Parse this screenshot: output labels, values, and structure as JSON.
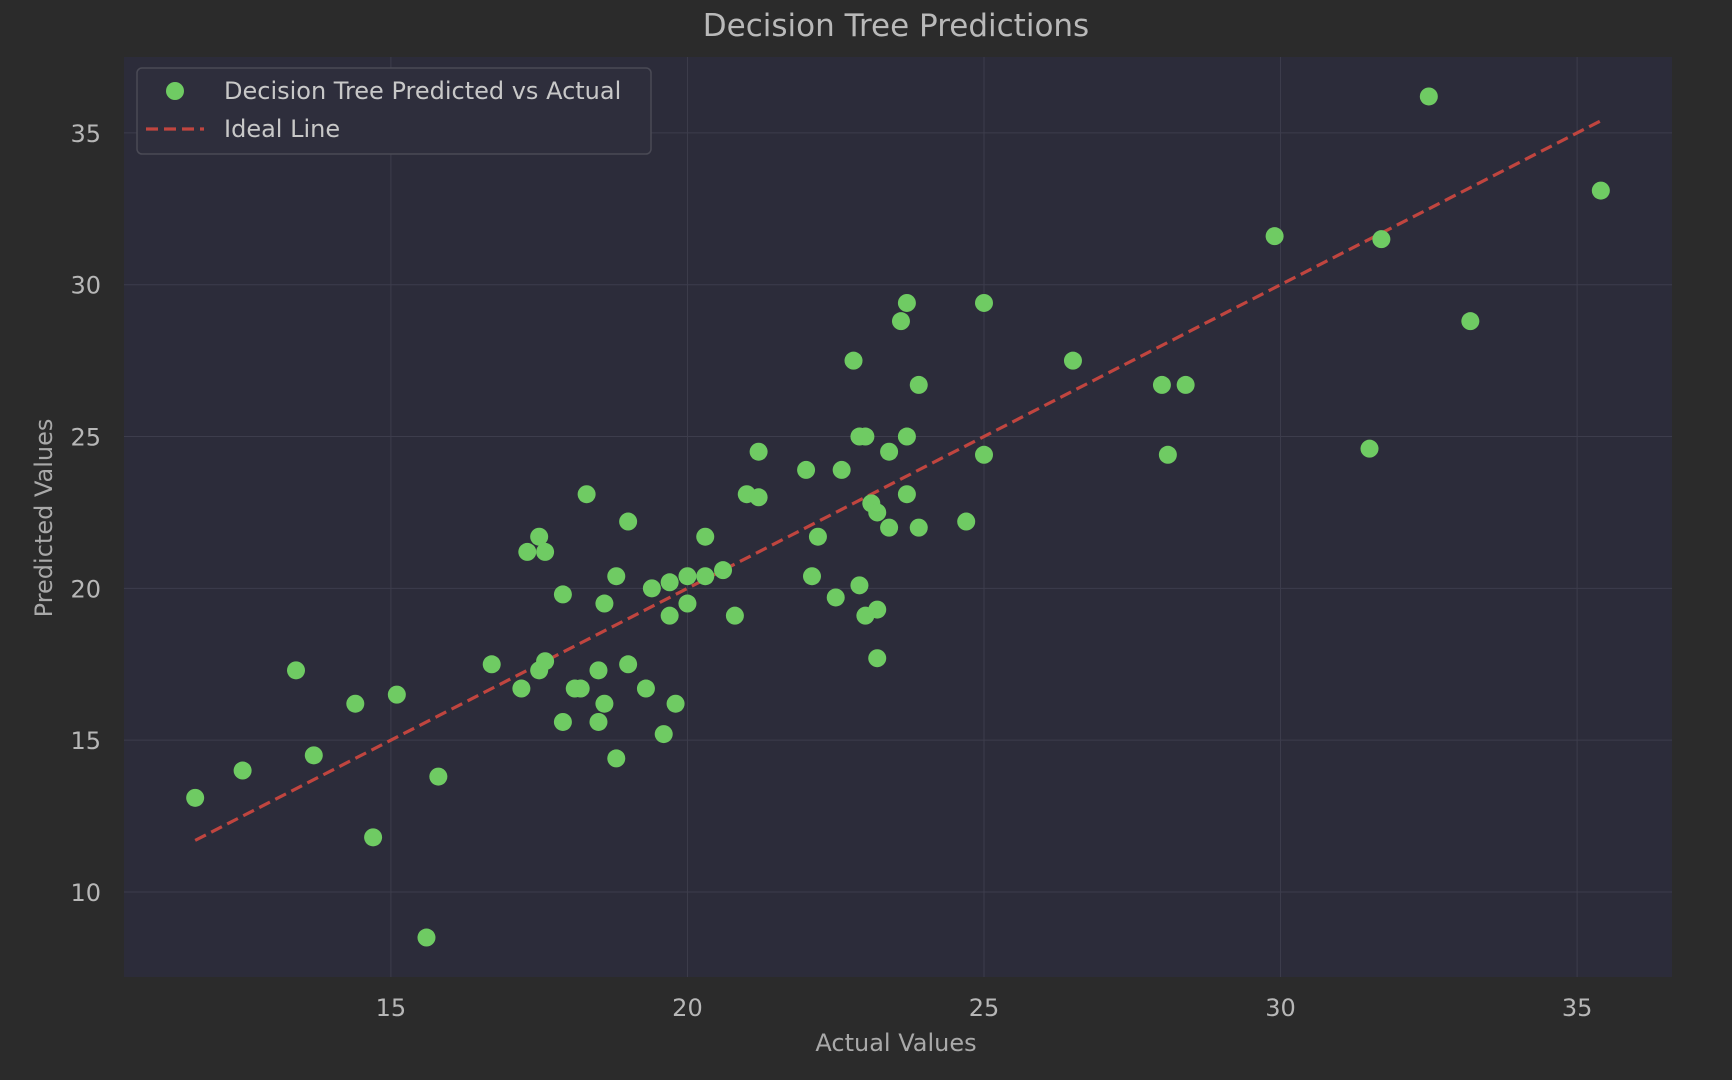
{
  "chart_data": {
    "type": "scatter",
    "title": "Decision Tree Predictions",
    "xlabel": "Actual Values",
    "ylabel": "Predicted Values",
    "xlim": [
      10.5,
      36.6
    ],
    "ylim": [
      7.2,
      37.5
    ],
    "xticks": [
      15,
      20,
      25,
      30,
      35
    ],
    "yticks": [
      10,
      15,
      20,
      25,
      30,
      35
    ],
    "grid": true,
    "legend": {
      "position": "top-left"
    },
    "colors": {
      "page_bg": "#2b2b2b",
      "plot_bg": "#2c2c3a",
      "grid": "#3d3d4c",
      "points": "#6fcb63",
      "ideal_line": "#c0453f",
      "legend_bg": "#2e2e3c",
      "legend_border": "#4a4a55"
    },
    "series": [
      {
        "name": "Decision Tree Predicted vs Actual",
        "kind": "scatter",
        "points": [
          [
            11.7,
            13.1
          ],
          [
            12.5,
            14.0
          ],
          [
            13.4,
            17.3
          ],
          [
            13.7,
            14.5
          ],
          [
            14.4,
            16.2
          ],
          [
            14.7,
            11.8
          ],
          [
            15.1,
            16.5
          ],
          [
            15.6,
            8.5
          ],
          [
            15.8,
            13.8
          ],
          [
            16.7,
            17.5
          ],
          [
            17.2,
            16.7
          ],
          [
            17.3,
            21.2
          ],
          [
            17.5,
            21.7
          ],
          [
            17.6,
            21.2
          ],
          [
            17.5,
            17.3
          ],
          [
            17.6,
            17.6
          ],
          [
            17.9,
            19.8
          ],
          [
            17.9,
            15.6
          ],
          [
            18.1,
            16.7
          ],
          [
            18.2,
            16.7
          ],
          [
            18.3,
            23.1
          ],
          [
            18.5,
            17.3
          ],
          [
            18.5,
            15.6
          ],
          [
            18.6,
            19.5
          ],
          [
            18.6,
            16.2
          ],
          [
            18.8,
            20.4
          ],
          [
            18.8,
            14.4
          ],
          [
            19.0,
            22.2
          ],
          [
            19.0,
            17.5
          ],
          [
            19.3,
            16.7
          ],
          [
            19.4,
            20.0
          ],
          [
            19.6,
            15.2
          ],
          [
            19.7,
            20.2
          ],
          [
            19.7,
            19.1
          ],
          [
            19.8,
            16.2
          ],
          [
            20.0,
            20.4
          ],
          [
            20.0,
            19.5
          ],
          [
            20.3,
            20.4
          ],
          [
            20.3,
            21.7
          ],
          [
            20.6,
            20.6
          ],
          [
            20.8,
            19.1
          ],
          [
            21.0,
            23.1
          ],
          [
            21.2,
            24.5
          ],
          [
            21.2,
            23.0
          ],
          [
            22.0,
            23.9
          ],
          [
            22.1,
            20.4
          ],
          [
            22.2,
            21.7
          ],
          [
            22.5,
            19.7
          ],
          [
            22.6,
            23.9
          ],
          [
            22.8,
            27.5
          ],
          [
            22.9,
            25.0
          ],
          [
            22.9,
            20.1
          ],
          [
            23.0,
            25.0
          ],
          [
            23.0,
            19.1
          ],
          [
            23.1,
            22.8
          ],
          [
            23.2,
            22.5
          ],
          [
            23.2,
            19.3
          ],
          [
            23.2,
            17.7
          ],
          [
            23.4,
            24.5
          ],
          [
            23.4,
            22.0
          ],
          [
            23.6,
            28.8
          ],
          [
            23.7,
            29.4
          ],
          [
            23.7,
            25.0
          ],
          [
            23.7,
            23.1
          ],
          [
            23.9,
            26.7
          ],
          [
            23.9,
            22.0
          ],
          [
            24.7,
            22.2
          ],
          [
            25.0,
            29.4
          ],
          [
            25.0,
            24.4
          ],
          [
            26.5,
            27.5
          ],
          [
            28.0,
            26.7
          ],
          [
            28.1,
            24.4
          ],
          [
            28.4,
            26.7
          ],
          [
            29.9,
            31.6
          ],
          [
            31.5,
            24.6
          ],
          [
            31.7,
            31.5
          ],
          [
            32.5,
            36.2
          ],
          [
            33.2,
            28.8
          ],
          [
            35.4,
            33.1
          ]
        ]
      },
      {
        "name": "Ideal Line",
        "kind": "line",
        "points": [
          [
            11.7,
            11.7
          ],
          [
            35.4,
            35.4
          ]
        ]
      }
    ]
  }
}
